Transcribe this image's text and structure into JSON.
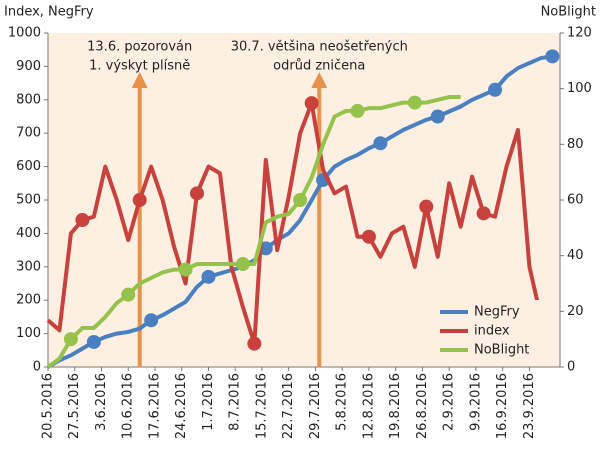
{
  "chart_data": {
    "type": "line",
    "y_label": "Index, NegFry",
    "y2_label": "NoBlight",
    "x": [
      "20.5.2016",
      "23.5.2016",
      "26.5.2016",
      "29.5.2016",
      "1.6.2016",
      "4.6.2016",
      "7.6.2016",
      "10.6.2016",
      "13.6.2016",
      "16.6.2016",
      "19.6.2016",
      "22.6.2016",
      "25.6.2016",
      "28.6.2016",
      "1.7.2016",
      "4.7.2016",
      "7.7.2016",
      "10.7.2016",
      "13.7.2016",
      "16.7.2016",
      "19.7.2016",
      "22.7.2016",
      "25.7.2016",
      "28.7.2016",
      "31.7.2016",
      "3.8.2016",
      "6.8.2016",
      "9.8.2016",
      "12.8.2016",
      "15.8.2016",
      "18.8.2016",
      "21.8.2016",
      "24.8.2016",
      "27.8.2016",
      "30.8.2016",
      "2.9.2016",
      "5.9.2016",
      "8.9.2016",
      "11.9.2016",
      "14.9.2016",
      "17.9.2016",
      "20.9.2016",
      "23.9.2016",
      "26.9.2016",
      "29.9.2016"
    ],
    "xlim": [
      "20.5.2016",
      "1.10.2016"
    ],
    "xticks": [
      "20.5.2016",
      "27.5.2016",
      "3.6.2016",
      "10.6.2016",
      "17.6.2016",
      "24.6.2016",
      "1.7.2016",
      "8.7.2016",
      "15.7.2016",
      "22.7.2016",
      "29.7.2016",
      "5.8.2016",
      "12.8.2016",
      "19.8.2016",
      "26.8.2016",
      "2.9.2016",
      "9.9.2016",
      "16.9.2016",
      "23.9.2016"
    ],
    "ylim": [
      0,
      1000
    ],
    "yticks": [
      0,
      100,
      200,
      300,
      400,
      500,
      600,
      700,
      800,
      900,
      1000
    ],
    "y2lim": [
      0,
      120
    ],
    "y2ticks": [
      0,
      20,
      40,
      60,
      80,
      100,
      120
    ],
    "legend": "bottom-right",
    "series": [
      {
        "name": "NegFry",
        "color": "#4a7fc1",
        "values": [
          0,
          20,
          35,
          55,
          75,
          90,
          100,
          105,
          115,
          140,
          155,
          175,
          195,
          240,
          270,
          280,
          290,
          300,
          320,
          355,
          380,
          400,
          440,
          500,
          560,
          600,
          620,
          635,
          655,
          670,
          690,
          710,
          725,
          740,
          750,
          765,
          780,
          800,
          815,
          830,
          870,
          895,
          910,
          925,
          930
        ]
      },
      {
        "name": "index",
        "color": "#c9413c",
        "values": [
          140,
          110,
          400,
          440,
          450,
          600,
          500,
          380,
          500,
          600,
          500,
          360,
          250,
          520,
          600,
          580,
          300,
          180,
          70,
          620,
          350,
          510,
          700,
          790,
          590,
          520,
          540,
          390,
          390,
          330,
          400,
          420,
          300,
          480,
          330,
          550,
          420,
          570,
          460,
          450,
          600,
          710,
          300,
          150,
          170
        ]
      },
      {
        "name": "NoBlight",
        "color": "#94c24a",
        "axis": "y2",
        "values": [
          0,
          3,
          10,
          14,
          14,
          18,
          23,
          26,
          30,
          32,
          34,
          35,
          35,
          37,
          37,
          37,
          37,
          37,
          37,
          52,
          54,
          55,
          60,
          68,
          80,
          90,
          92,
          92,
          93,
          93,
          94,
          95,
          95,
          95,
          96,
          97,
          97,
          null,
          null,
          null,
          null,
          null,
          null,
          null,
          null
        ]
      }
    ],
    "annotations": [
      {
        "x": "13.6.2016",
        "text": [
          "13.6. pozorován",
          "1. výskyt plísně"
        ]
      },
      {
        "x": "30.7.2016",
        "text": [
          "30.7. většina neošetřených",
          "odrůd zničena"
        ]
      }
    ]
  }
}
